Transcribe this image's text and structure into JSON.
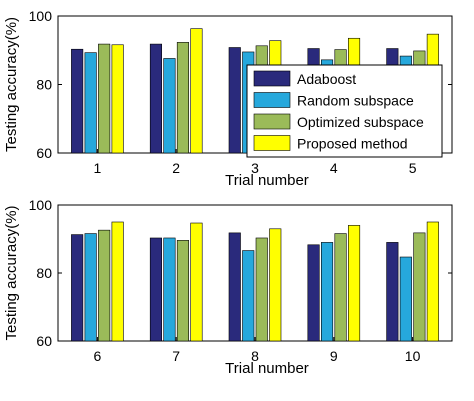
{
  "chart_data": [
    {
      "type": "bar",
      "categories": [
        "1",
        "2",
        "3",
        "4",
        "5"
      ],
      "series": [
        {
          "name": "Adaboost",
          "values": [
            90.3,
            91.8,
            90.8,
            90.5,
            90.5
          ]
        },
        {
          "name": "Random subspace",
          "values": [
            89.3,
            87.6,
            89.5,
            87.2,
            88.3
          ]
        },
        {
          "name": "Optimized subspace",
          "values": [
            91.8,
            92.3,
            91.3,
            90.2,
            89.8
          ]
        },
        {
          "name": "Proposed method",
          "values": [
            91.6,
            96.3,
            92.8,
            93.5,
            94.7
          ]
        }
      ],
      "xlabel": "Trial number",
      "ylabel": "Testing accuracy(%)",
      "ylim": [
        60,
        100
      ],
      "yticks": [
        "60",
        "80",
        "100"
      ],
      "legend": true,
      "legend_position": "right"
    },
    {
      "type": "bar",
      "categories": [
        "6",
        "7",
        "8",
        "9",
        "10"
      ],
      "series": [
        {
          "name": "Adaboost",
          "values": [
            91.3,
            90.3,
            91.8,
            88.3,
            89.0
          ]
        },
        {
          "name": "Random subspace",
          "values": [
            91.6,
            90.3,
            86.6,
            89.0,
            84.7
          ]
        },
        {
          "name": "Optimized subspace",
          "values": [
            92.6,
            89.6,
            90.3,
            91.6,
            91.8
          ]
        },
        {
          "name": "Proposed method",
          "values": [
            95.0,
            94.7,
            93.0,
            94.0,
            95.0
          ]
        }
      ],
      "xlabel": "Trial number",
      "ylabel": "Testing accuracy(%)",
      "ylim": [
        60,
        100
      ],
      "yticks": [
        "60",
        "80",
        "100"
      ],
      "legend": false
    }
  ],
  "colors": [
    "#2a2a7c",
    "#26a8dc",
    "#9bbb59",
    "#ffff00"
  ]
}
